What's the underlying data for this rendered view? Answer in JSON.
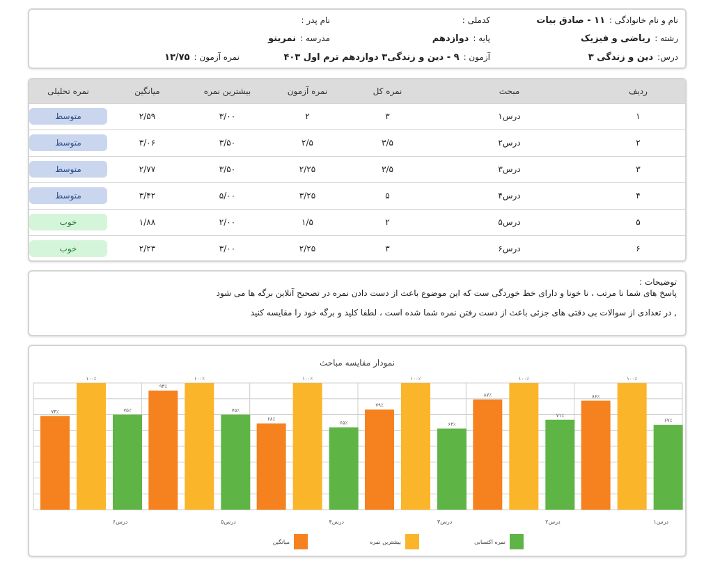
{
  "info": {
    "name_label": "نام و نام خانوادگی :",
    "name_value": "۱۱ - صادق بیات",
    "national_label": "کدملی :",
    "father_label": "نام پدر :",
    "field_label": "رشته :",
    "field_value": "ریاضی و فیزیک",
    "grade_label": "پایه :",
    "grade_value": "دوازدهم",
    "school_label": "مدرسه :",
    "school_value": "نمرینو",
    "course_label": "درس:",
    "course_value": "دین و زندگی ۳",
    "exam_label": "آزمون :",
    "exam_value": "۹ - دین و زندگی۳ دوازدهم ترم اول ۴۰۳",
    "score_label": "نمره آزمون :",
    "score_value": "۱۳/۷۵"
  },
  "table": {
    "headers": [
      "ردیف",
      "مبحث",
      "نمره کل",
      "نمره آزمون",
      "بیشترین نمره",
      "میانگین",
      "نمره تحلیلی"
    ],
    "rows": [
      [
        "۱",
        "درس۱",
        "۳",
        "۲",
        "۳/۰۰",
        "۲/۵۹",
        "متوسط"
      ],
      [
        "۲",
        "درس۲",
        "۳/۵",
        "۲/۵",
        "۳/۵۰",
        "۳/۰۶",
        "متوسط"
      ],
      [
        "۳",
        "درس۳",
        "۳/۵",
        "۲/۲۵",
        "۳/۵۰",
        "۲/۷۷",
        "متوسط"
      ],
      [
        "۴",
        "درس۴",
        "۵",
        "۳/۲۵",
        "۵/۰۰",
        "۳/۴۲",
        "متوسط"
      ],
      [
        "۵",
        "درس۵",
        "۲",
        "۱/۵",
        "۲/۰۰",
        "۱/۸۸",
        "خوب"
      ],
      [
        "۶",
        "درس۶",
        "۳",
        "۲/۲۵",
        "۳/۰۰",
        "۲/۲۳",
        "خوب"
      ]
    ]
  },
  "badge_colors": {
    "متوسط": {
      "bg": "#c9d6ee",
      "fg": "#2f4f8a"
    },
    "خوب": {
      "bg": "#d4f5d9",
      "fg": "#2e7d3a"
    }
  },
  "notes": {
    "title": "توضیحات :",
    "lines": [
      "پاسخ های شما نا مرتب ، نا خونا و دارای خط خوردگی ست که این موضوع باعث از دست دادن نمره در تصحیح آنلاین برگه ها می شود",
      ", در تعدادی از سوالات بی دقتی های جزئی باعث از دست رفتن نمره شما شده است ، لطفا کلید و برگه خود را مقایسه کنید"
    ]
  },
  "chart_data": {
    "type": "bar",
    "title": "نمودار مقایسه مباحث",
    "categories": [
      "درس۱",
      "درس۲",
      "درس۳",
      "درس۴",
      "درس۵",
      "درس۶"
    ],
    "ylim": [
      0,
      100
    ],
    "series": [
      {
        "name": "میانگین",
        "color": "#f5821f",
        "values": [
          86,
          87,
          79,
          68,
          94,
          74
        ],
        "labels": [
          "۸۶٪",
          "۸۷٪",
          "۷۹٪",
          "۶۸٪",
          "۹۴٪",
          "۷۴٪"
        ]
      },
      {
        "name": "بیشترین نمره",
        "color": "#fbb52b",
        "values": [
          100,
          100,
          100,
          100,
          100,
          100
        ],
        "labels": [
          "۱۰۰٪",
          "۱۰۰٪",
          "۱۰۰٪",
          "۱۰۰٪",
          "۱۰۰٪",
          "۱۰۰٪"
        ]
      },
      {
        "name": "نمره اکتسابی",
        "color": "#5fb446",
        "values": [
          67,
          71,
          64,
          65,
          75,
          75
        ],
        "labels": [
          "۶۷٪",
          "۷۱٪",
          "۶۴٪",
          "۶۵٪",
          "۷۵٪",
          "۷۵٪"
        ]
      }
    ]
  }
}
